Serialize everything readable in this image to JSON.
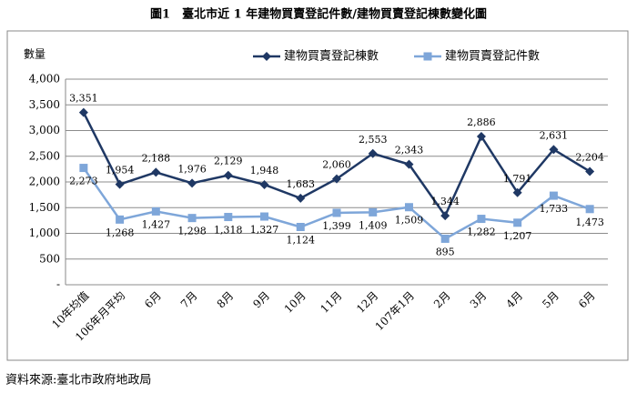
{
  "chart_data": {
    "type": "line",
    "title": "圖1　臺北市近 1 年建物買賣登記件數/建物買賣登記棟數變化圖",
    "y_label": "數量",
    "source": "資料來源:臺北市政府地政局",
    "categories": [
      "10年均值",
      "106年月平均",
      "6月",
      "7月",
      "8月",
      "9月",
      "10月",
      "11月",
      "12月",
      "107年1月",
      "2月",
      "3月",
      "4月",
      "5月",
      "6月"
    ],
    "series": [
      {
        "name": "建物買賣登記棟數",
        "color": "#1f3864",
        "marker": "diamond",
        "values": [
          3351,
          1954,
          2188,
          1976,
          2129,
          1948,
          1683,
          2060,
          2553,
          2343,
          1344,
          2886,
          1791,
          2631,
          2204
        ],
        "value_labels": [
          "3,351",
          "1,954",
          "2,188",
          "1,976",
          "2,129",
          "1,948",
          "1,683",
          "2,060",
          "2,553",
          "2,343",
          "1,344",
          "2,886",
          "1,791",
          "2,631",
          "2,204"
        ]
      },
      {
        "name": "建物買賣登記件數",
        "color": "#7ea6d9",
        "marker": "square",
        "values": [
          2273,
          1268,
          1427,
          1298,
          1318,
          1327,
          1124,
          1399,
          1409,
          1509,
          895,
          1282,
          1207,
          1733,
          1473
        ],
        "value_labels": [
          "2,273",
          "1,268",
          "1,427",
          "1,298",
          "1,318",
          "1,327",
          "1,124",
          "1,399",
          "1,409",
          "1,509",
          "895",
          "1,282",
          "1,207",
          "1,733",
          "1,473"
        ]
      }
    ],
    "ylim": [
      0,
      4000
    ],
    "yticks": [
      {
        "value": 0,
        "label": "-"
      },
      500,
      {
        "value": 1000,
        "label": "1,000"
      },
      {
        "value": 1500,
        "label": "1,500"
      },
      {
        "value": 2000,
        "label": "2,000"
      },
      {
        "value": 2500,
        "label": "2,500"
      },
      {
        "value": 3000,
        "label": "3,000"
      },
      {
        "value": 3500,
        "label": "3,500"
      },
      {
        "value": 4000,
        "label": "4,000"
      }
    ],
    "grid": true,
    "legend": "top"
  }
}
